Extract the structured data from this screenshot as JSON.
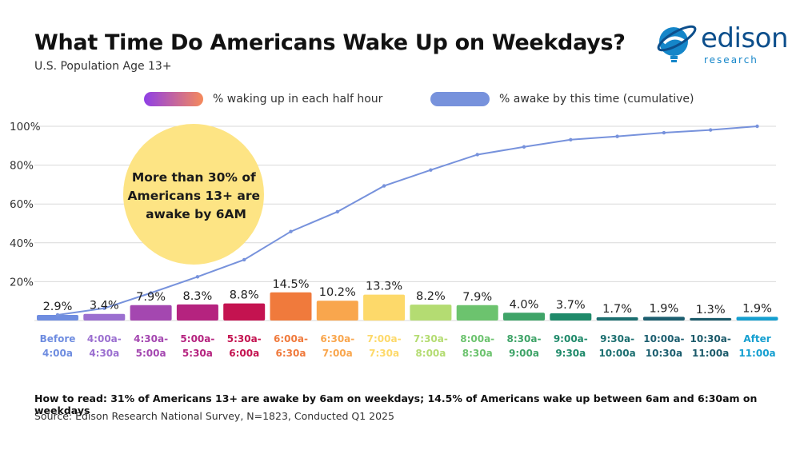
{
  "title": "What Time Do Americans Wake Up on Weekdays?",
  "subtitle": "U.S. Population Age 13+",
  "logo": {
    "word": "edison",
    "sub": "research"
  },
  "legend": {
    "bars_label": "% waking up in each half hour",
    "line_label": "% awake by this time (cumulative)"
  },
  "callout": {
    "lines": [
      "More than 30% of",
      "Americans 13+ are",
      "awake by 6AM"
    ],
    "color": "#fde484"
  },
  "footer": {
    "how_to_read": "How to read: 31% of Americans 13+ are awake by 6am on weekdays; 14.5% of Americans wake up between 6am and 6:30am on weekdays",
    "source": "Source: Edison Research National Survey, N=1823, Conducted Q1 2025"
  },
  "colors": {
    "line": "#7792dc",
    "grid": "#d9d9d9"
  },
  "chart_data": {
    "type": "bar",
    "title": "What Time Do Americans Wake Up on Weekdays?",
    "ylim": [
      0,
      100
    ],
    "y_ticks": [
      "100%",
      "80%",
      "60%",
      "40%",
      "20%"
    ],
    "y_tick_values": [
      100,
      80,
      60,
      40,
      20
    ],
    "categories": [
      [
        "Before",
        "4:00a"
      ],
      [
        "4:00a-",
        "4:30a"
      ],
      [
        "4:30a-",
        "5:00a"
      ],
      [
        "5:00a-",
        "5:30a"
      ],
      [
        "5:30a-",
        "6:00a"
      ],
      [
        "6:00a-",
        "6:30a"
      ],
      [
        "6:30a-",
        "7:00a"
      ],
      [
        "7:00a-",
        "7:30a"
      ],
      [
        "7:30a-",
        "8:00a"
      ],
      [
        "8:00a-",
        "8:30a"
      ],
      [
        "8:30a-",
        "9:00a"
      ],
      [
        "9:00a-",
        "9:30a"
      ],
      [
        "9:30a-",
        "10:00a"
      ],
      [
        "10:00a-",
        "10:30a"
      ],
      [
        "10:30a-",
        "11:00a"
      ],
      [
        "After",
        "11:00a"
      ]
    ],
    "series": [
      {
        "name": "% waking up in each half hour",
        "values": [
          2.9,
          3.4,
          7.9,
          8.3,
          8.8,
          14.5,
          10.2,
          13.3,
          8.2,
          7.9,
          4.0,
          3.7,
          1.7,
          1.9,
          1.3,
          1.9
        ],
        "labels": [
          "2.9%",
          "3.4%",
          "7.9%",
          "8.3%",
          "8.8%",
          "14.5%",
          "10.2%",
          "13.3%",
          "8.2%",
          "7.9%",
          "4.0%",
          "3.7%",
          "1.7%",
          "1.9%",
          "1.3%",
          "1.9%"
        ]
      },
      {
        "name": "% awake by this time (cumulative)",
        "values": [
          2.9,
          6.3,
          14.2,
          22.5,
          31.3,
          45.8,
          56.0,
          69.3,
          77.5,
          85.4,
          89.4,
          93.1,
          94.8,
          96.7,
          98.1,
          100.0
        ]
      }
    ],
    "bar_colors": [
      "#6f8de0",
      "#9b6fd0",
      "#a447b0",
      "#b5237f",
      "#c41350",
      "#f07a3c",
      "#f9a64d",
      "#fdd96a",
      "#b4dc72",
      "#6cc36e",
      "#3fa468",
      "#1f8a6a",
      "#1c6f70",
      "#1c5e6f",
      "#1b5a6a",
      "#159fd0"
    ]
  }
}
